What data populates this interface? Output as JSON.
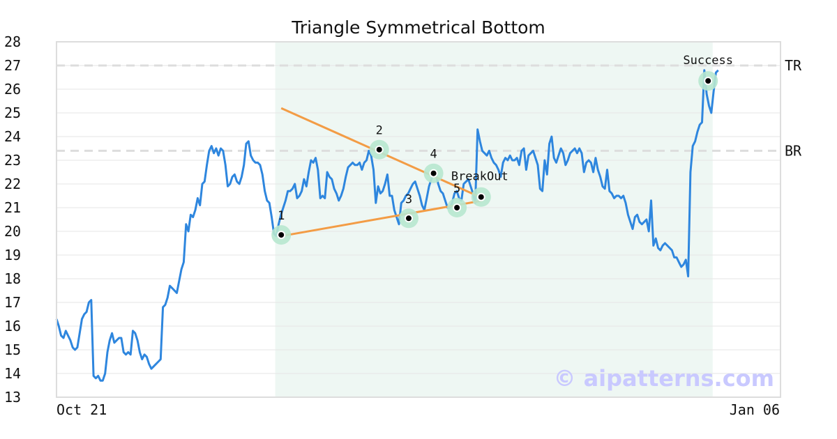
{
  "chart_data": {
    "type": "line",
    "title": "Triangle Symmetrical Bottom",
    "ylim": [
      13,
      28
    ],
    "y_ticks": [
      "13",
      "14",
      "15",
      "16",
      "17",
      "18",
      "19",
      "20",
      "21",
      "22",
      "23",
      "24",
      "25",
      "26",
      "27",
      "28"
    ],
    "x_tick_labels": [
      "Oct 21",
      "Jan 06"
    ],
    "grid": "horizontal",
    "colors": {
      "price": "#2e86de",
      "trendline": "#f39c45",
      "highlight": "#eef7f3",
      "marker_halo": "#b7e7cf",
      "level": "#dddddd",
      "watermark": "#c9c9ff"
    },
    "series": [
      {
        "values": [
          16.3,
          16.0,
          15.6,
          15.5,
          15.8,
          15.6,
          15.4,
          15.1,
          15.0,
          15.1,
          15.7,
          16.3,
          16.5,
          16.6,
          17.0,
          17.1,
          13.9,
          13.8,
          13.9,
          13.7,
          13.7,
          14.0,
          14.9,
          15.4,
          15.7,
          15.3,
          15.4,
          15.5,
          15.5,
          14.9,
          14.8,
          14.9,
          14.8,
          15.8,
          15.7,
          15.4,
          14.9,
          14.6,
          14.8,
          14.7,
          14.4,
          14.2,
          14.3,
          14.4,
          14.5,
          14.6,
          16.8,
          16.9,
          17.2,
          17.7,
          17.6,
          17.5,
          17.4,
          17.9,
          18.4,
          18.7,
          20.3,
          20.0,
          20.7,
          20.6,
          20.9,
          21.4,
          21.1,
          22.0,
          22.1,
          22.8,
          23.4,
          23.6,
          23.3,
          23.5,
          23.2,
          23.5,
          23.4,
          22.8,
          21.9,
          22.0,
          22.3,
          22.4,
          22.1,
          22.0,
          22.3,
          22.8,
          23.7,
          23.8,
          23.2,
          23.0,
          22.9,
          22.9,
          22.8,
          22.4,
          21.7,
          21.3,
          21.2,
          20.6,
          19.9,
          19.8,
          20.3,
          20.7,
          21.0,
          21.3,
          21.7,
          21.7,
          21.8,
          22.0,
          21.4,
          21.5,
          21.7,
          22.2,
          21.9,
          22.5,
          23.0,
          22.9,
          23.1,
          22.6,
          21.4,
          21.5,
          21.4,
          22.5,
          22.3,
          22.2,
          21.8,
          21.6,
          21.3,
          21.5,
          21.8,
          22.3,
          22.7,
          22.8,
          22.9,
          22.8,
          22.8,
          22.9,
          22.6,
          22.9,
          23.0,
          23.4,
          23.2,
          22.6,
          21.2,
          21.9,
          21.6,
          21.7,
          22.0,
          22.4,
          21.5,
          21.5,
          20.9,
          20.6,
          20.3,
          21.2,
          21.3,
          21.5,
          21.6,
          21.8,
          22.0,
          22.1,
          21.8,
          21.5,
          21.1,
          20.9,
          21.4,
          21.9,
          22.2,
          22.5,
          22.4,
          22.0,
          21.7,
          21.6,
          21.3,
          21.0,
          21.0,
          21.2,
          21.6,
          21.7,
          21.4,
          21.3,
          22.0,
          22.1,
          22.2,
          21.9,
          21.6,
          21.2,
          24.3,
          23.8,
          23.4,
          23.3,
          23.2,
          23.4,
          23.1,
          22.9,
          22.8,
          22.6,
          22.3,
          22.9,
          23.1,
          23.0,
          23.2,
          23.0,
          23.0,
          23.1,
          22.8,
          23.4,
          23.5,
          22.6,
          23.2,
          23.3,
          23.4,
          23.1,
          22.8,
          21.8,
          21.7,
          23.0,
          22.4,
          23.7,
          24.0,
          23.1,
          22.9,
          23.2,
          23.5,
          23.3,
          22.8,
          23.0,
          23.3,
          23.4,
          23.5,
          23.3,
          23.5,
          23.3,
          22.5,
          22.9,
          23.0,
          22.9,
          22.5,
          23.1,
          22.6,
          22.3,
          21.9,
          21.8,
          22.6,
          21.7,
          21.6,
          21.4,
          21.5,
          21.5,
          21.4,
          21.5,
          21.2,
          20.7,
          20.4,
          20.1,
          20.6,
          20.7,
          20.4,
          20.3,
          20.4,
          20.5,
          20.0,
          21.3,
          19.4,
          19.7,
          19.3,
          19.2,
          19.4,
          19.5,
          19.4,
          19.3,
          19.2,
          18.9,
          18.9,
          18.7,
          18.5,
          18.6,
          18.8,
          18.1,
          22.5,
          23.6,
          23.8,
          24.2,
          24.5,
          24.6,
          26.8,
          25.8,
          25.3,
          25.0,
          25.9,
          26.7,
          26.8
        ]
      }
    ],
    "highlight_region": {
      "x_start": 0.3021,
      "x_end": 0.9063
    },
    "levels": [
      {
        "label": "TR",
        "value": 27.0
      },
      {
        "label": "BR",
        "value": 23.4
      }
    ],
    "trendlines": [
      {
        "from": {
          "x": 0.3104,
          "y": 25.2
        },
        "to": {
          "x": 0.5885,
          "y": 21.4
        }
      },
      {
        "from": {
          "x": 0.3104,
          "y": 19.8
        },
        "to": {
          "x": 0.5885,
          "y": 21.3
        }
      }
    ],
    "points": [
      {
        "label": "1",
        "x": 0.3104,
        "y": 19.85
      },
      {
        "label": "2",
        "x": 0.4458,
        "y": 23.45
      },
      {
        "label": "3",
        "x": 0.4865,
        "y": 20.55
      },
      {
        "label": "4",
        "x": 0.5208,
        "y": 22.45
      },
      {
        "label": "5",
        "x": 0.5531,
        "y": 21.0
      },
      {
        "label": "BreakOut",
        "x": 0.5865,
        "y": 21.45
      },
      {
        "label": "Success",
        "x": 0.9,
        "y": 26.35
      }
    ],
    "watermark": "© aipatterns.com"
  }
}
